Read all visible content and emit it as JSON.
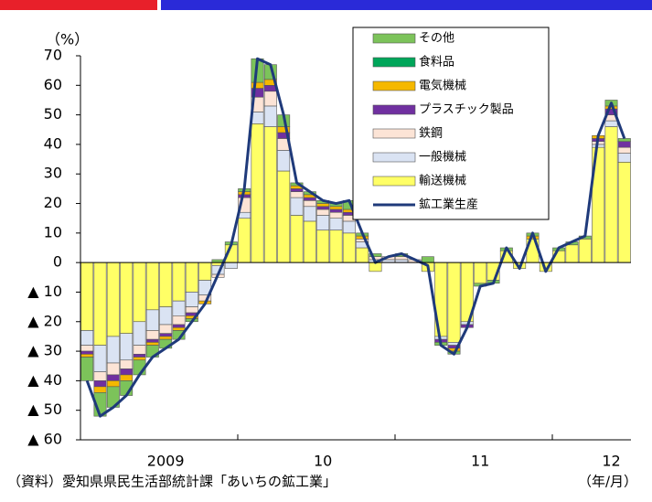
{
  "chart_data": {
    "type": "stacked-bar-line",
    "y_unit_label": "（%）",
    "source_note": "（資料）愛知県県民生活部統計課「あいちの鉱工業」",
    "x_unit_label": "（年/月）",
    "categories": [
      null,
      null,
      null,
      null,
      null,
      null,
      "2009",
      null,
      null,
      null,
      null,
      null,
      null,
      null,
      null,
      null,
      null,
      null,
      "10",
      null,
      null,
      null,
      null,
      null,
      null,
      null,
      null,
      null,
      null,
      null,
      "11",
      null,
      null,
      null,
      null,
      null,
      null,
      null,
      null,
      null,
      "12",
      null
    ],
    "ylim": [
      -60,
      70
    ],
    "yticks": [
      {
        "value": -60,
        "label": "▲ 60"
      },
      {
        "value": -50,
        "label": "▲ 50"
      },
      {
        "value": -40,
        "label": "▲ 40"
      },
      {
        "value": -30,
        "label": "▲ 30"
      },
      {
        "value": -20,
        "label": "▲ 20"
      },
      {
        "value": -10,
        "label": "▲ 10"
      },
      0,
      10,
      20,
      30,
      40,
      50,
      60,
      70
    ],
    "series": [
      {
        "name": "その他",
        "color": "#7cc35a",
        "values": [
          -8,
          -8,
          -7,
          -5,
          -5,
          -4,
          -3,
          -3,
          -1,
          0,
          1,
          1,
          1,
          8,
          5,
          4,
          1,
          1,
          1,
          1,
          3,
          1,
          1,
          0,
          1,
          0,
          2,
          -1,
          -1,
          0,
          -1,
          -1,
          1,
          0,
          1,
          0,
          1,
          1,
          1,
          0,
          2,
          1
        ]
      },
      {
        "name": "食料品",
        "color": "#00a65a",
        "values": [
          0,
          0,
          0,
          0,
          0,
          0,
          0,
          0,
          0,
          0,
          0,
          0,
          0,
          0,
          0,
          0,
          0,
          0,
          0,
          0,
          0,
          0,
          0,
          0,
          0,
          0,
          0,
          0,
          0,
          0,
          0,
          0,
          0,
          0,
          0,
          0,
          0,
          0,
          0,
          0,
          0,
          0
        ]
      },
      {
        "name": "電気機械",
        "color": "#f5b800",
        "values": [
          -1,
          -2,
          -2,
          -2,
          -1,
          -1,
          -1,
          -1,
          -1,
          -1,
          0,
          0,
          1,
          2,
          2,
          2,
          1,
          1,
          1,
          1,
          1,
          1,
          0,
          0,
          0,
          0,
          0,
          0,
          -1,
          0,
          0,
          0,
          0,
          0,
          1,
          0,
          0,
          0,
          0,
          1,
          1,
          0
        ]
      },
      {
        "name": "プラスチック製品",
        "color": "#7030a0",
        "values": [
          -1,
          -2,
          -2,
          -2,
          -1,
          -1,
          -1,
          -1,
          -1,
          0,
          0,
          0,
          1,
          3,
          2,
          2,
          1,
          1,
          1,
          1,
          1,
          0,
          0,
          0,
          0,
          0,
          0,
          -1,
          -1,
          -1,
          0,
          0,
          0,
          0,
          0,
          0,
          0,
          0,
          0,
          1,
          2,
          2
        ]
      },
      {
        "name": "鉄鋼",
        "color": "#fce4d6",
        "values": [
          -2,
          -3,
          -4,
          -3,
          -3,
          -3,
          -3,
          -3,
          -2,
          -2,
          -1,
          0,
          5,
          5,
          5,
          4,
          2,
          2,
          2,
          2,
          2,
          1,
          1,
          1,
          1,
          1,
          0,
          0,
          0,
          0,
          0,
          0,
          0,
          0,
          0,
          0,
          0,
          0,
          0,
          1,
          2,
          2
        ]
      },
      {
        "name": "一般機械",
        "color": "#dae3f3",
        "values": [
          -5,
          -9,
          -9,
          -9,
          -8,
          -7,
          -6,
          -5,
          -5,
          -5,
          -3,
          -2,
          2,
          4,
          7,
          7,
          6,
          5,
          5,
          4,
          4,
          2,
          1,
          1,
          1,
          0,
          0,
          -1,
          -1,
          -1,
          0,
          0,
          0,
          0,
          0,
          0,
          0,
          0,
          0,
          1,
          2,
          3
        ]
      },
      {
        "name": "輸送機械",
        "color": "#ffff66",
        "values": [
          -23,
          -28,
          -25,
          -24,
          -20,
          -16,
          -15,
          -13,
          -10,
          -6,
          -1,
          6,
          15,
          47,
          46,
          31,
          16,
          14,
          11,
          11,
          10,
          5,
          -3,
          0,
          0,
          0,
          -3,
          -25,
          -27,
          -20,
          -7,
          -6,
          4,
          -2,
          8,
          -3,
          4,
          6,
          8,
          39,
          46,
          34
        ]
      }
    ],
    "line": {
      "name": "鉱工業生産",
      "color": "#1f3a7a",
      "values": [
        -40,
        -52,
        -49,
        -45,
        -38,
        -32,
        -29,
        -26,
        -20,
        -14,
        -4,
        6,
        25,
        69,
        67,
        50,
        27,
        24,
        21,
        20,
        21,
        10,
        0,
        2,
        3,
        1,
        -1,
        -28,
        -31,
        -22,
        -8,
        -7,
        5,
        -2,
        10,
        -3,
        5,
        7,
        9,
        43,
        54,
        42
      ]
    }
  }
}
